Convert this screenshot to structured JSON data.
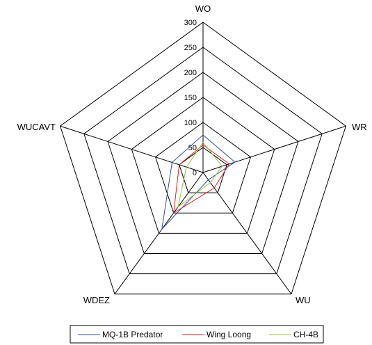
{
  "chart_data": {
    "type": "radar",
    "axes": [
      "WO",
      "WR",
      "WU",
      "WDEZ",
      "WUCAVT"
    ],
    "rlim": [
      0,
      300
    ],
    "ticks": [
      "0",
      "50",
      "100",
      "150",
      "200",
      "250",
      "300"
    ],
    "tick_values": [
      0,
      50,
      100,
      150,
      200,
      250,
      300
    ],
    "grid": true,
    "legend_position": "bottom",
    "series": [
      {
        "name": "MQ-1B Predator",
        "color": "#2f4f9f",
        "values": [
          75,
          67,
          18,
          140,
          65
        ]
      },
      {
        "name": "Wing Loong",
        "color": "#e41a1c",
        "values": [
          55,
          55,
          38,
          100,
          50
        ]
      },
      {
        "name": "CH-4B",
        "color": "#8cc63f",
        "values": [
          60,
          40,
          25,
          85,
          35
        ]
      }
    ]
  }
}
